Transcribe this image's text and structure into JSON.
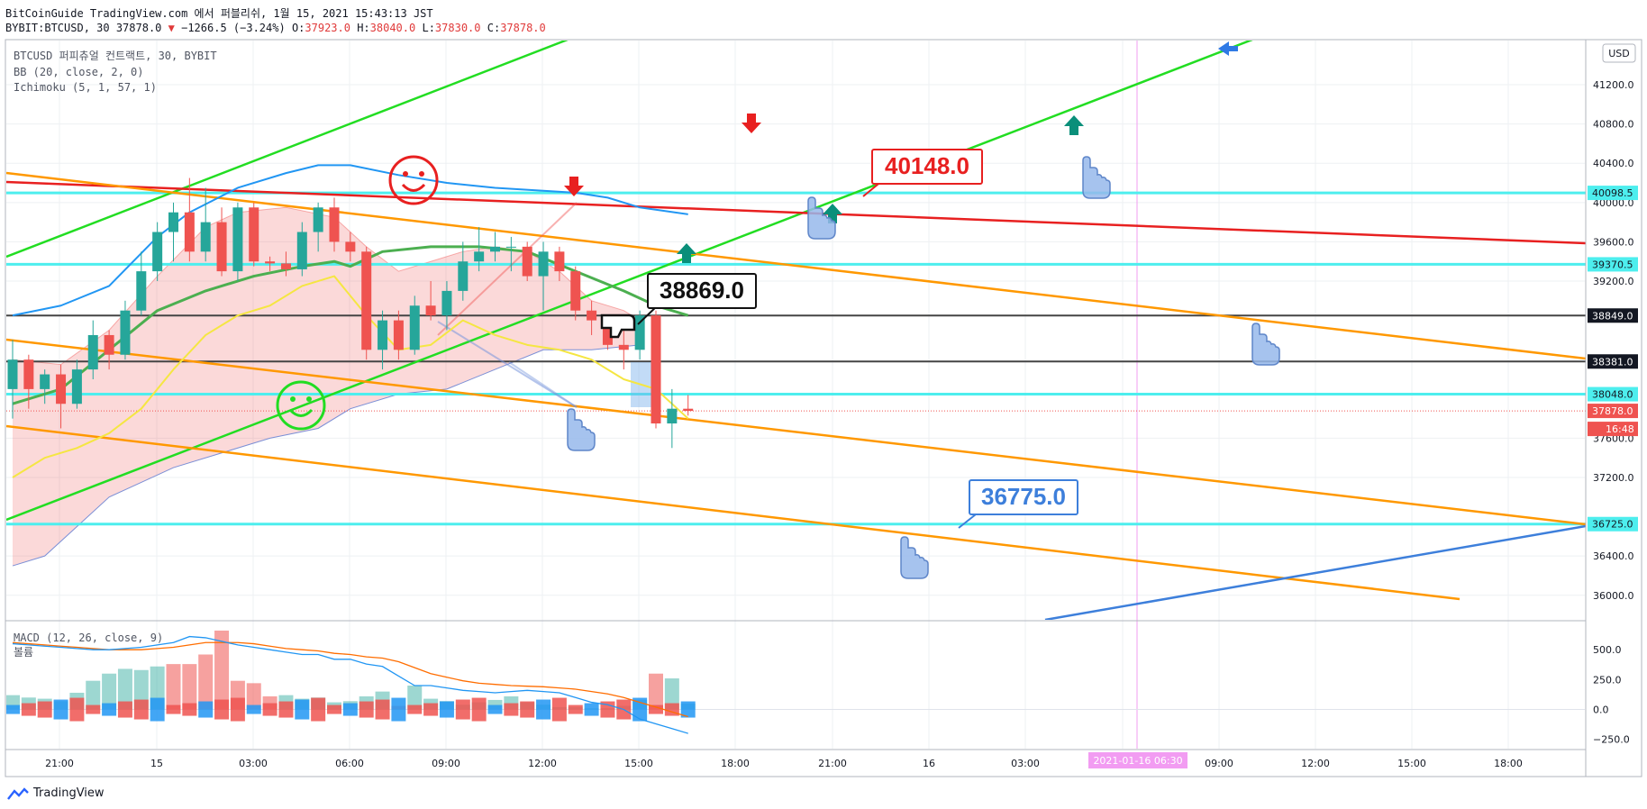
{
  "header": {
    "line1": "BitCoinGuide TradingView.com 에서 퍼블리쉬, 1월 15, 2021 15:43:13 JST",
    "symbol": "BYBIT:BTCUSD, 30",
    "last": "37878.0",
    "change": "−1266.5 (−3.24%)",
    "o_label": "O:",
    "o": "37923.0",
    "h_label": "H:",
    "h": "38040.0",
    "l_label": "L:",
    "l": "37830.0",
    "c_label": "C:",
    "c": "37878.0"
  },
  "legend": {
    "title": "BTCUSD 퍼피츄얼 컨트랙트, 30, BYBIT",
    "bb": "BB (20, close, 2, 0)",
    "ichimoku": "Ichimoku (5, 1, 57, 1)",
    "macd": "MACD (12, 26, close, 9)",
    "volume": "볼륨"
  },
  "currency": "USD",
  "branding": "TradingView",
  "colors": {
    "up": "#26a69a",
    "down": "#ef5350",
    "bb": "#2196f3",
    "tenkan": "#f5e642",
    "kijun": "#4caf50",
    "green_line": "#22dd22",
    "red_line": "#e82020",
    "orange_line": "#ff9800",
    "blue_line": "#3d7fdb",
    "cyan_line": "#4deeee",
    "black_line": "#444444"
  },
  "chart_data": {
    "type": "candlestick",
    "price_axis": {
      "ticks": [
        "41200.0",
        "40800.0",
        "40400.0",
        "40000.0",
        "39600.0",
        "39200.0",
        "37600.0",
        "37200.0",
        "36400.0",
        "36000.0"
      ],
      "range": [
        35750,
        41650
      ]
    },
    "macd_axis": {
      "ticks": [
        "500.0",
        "250.0",
        "0.0",
        "−250.0"
      ],
      "range": [
        -320,
        720
      ]
    },
    "time_axis": {
      "ticks": [
        "21:00",
        "15",
        "03:00",
        "06:00",
        "09:00",
        "12:00",
        "15:00",
        "18:00",
        "21:00",
        "16",
        "03:00",
        "06:00",
        "09:00",
        "12:00",
        "15:00",
        "18:00"
      ],
      "crosshair_label": "2021-01-16 06:30"
    },
    "price_labels": [
      {
        "value": 40098.5,
        "text": "40098.5",
        "kind": "cyan"
      },
      {
        "value": 39370.5,
        "text": "39370.5",
        "kind": "cyan"
      },
      {
        "value": 38849.0,
        "text": "38849.0",
        "kind": "black"
      },
      {
        "value": 38381.0,
        "text": "38381.0",
        "kind": "black"
      },
      {
        "value": 38048.0,
        "text": "38048.0",
        "kind": "cyan"
      },
      {
        "value": 37878.0,
        "text": "37878.0",
        "kind": "last"
      },
      {
        "value": 36725.0,
        "text": "36725.0",
        "kind": "cyan"
      }
    ],
    "countdown": "16:48",
    "callouts": [
      {
        "text": "40148.0",
        "color": "#e82020"
      },
      {
        "text": "38869.0",
        "color": "#111111"
      },
      {
        "text": "36775.0",
        "color": "#3d7fdb"
      }
    ],
    "candles": [
      {
        "o": 38100,
        "h": 38600,
        "l": 37800,
        "c": 38400
      },
      {
        "o": 38400,
        "h": 38450,
        "l": 37900,
        "c": 38100
      },
      {
        "o": 38100,
        "h": 38300,
        "l": 37950,
        "c": 38250
      },
      {
        "o": 38250,
        "h": 38350,
        "l": 37700,
        "c": 37950
      },
      {
        "o": 37950,
        "h": 38400,
        "l": 37900,
        "c": 38300
      },
      {
        "o": 38300,
        "h": 38800,
        "l": 38200,
        "c": 38650
      },
      {
        "o": 38650,
        "h": 38700,
        "l": 38300,
        "c": 38450
      },
      {
        "o": 38450,
        "h": 39000,
        "l": 38400,
        "c": 38900
      },
      {
        "o": 38900,
        "h": 39500,
        "l": 38850,
        "c": 39300
      },
      {
        "o": 39300,
        "h": 39800,
        "l": 39200,
        "c": 39700
      },
      {
        "o": 39700,
        "h": 40000,
        "l": 39400,
        "c": 39900
      },
      {
        "o": 39900,
        "h": 40250,
        "l": 39400,
        "c": 39500
      },
      {
        "o": 39500,
        "h": 40150,
        "l": 39400,
        "c": 39800
      },
      {
        "o": 39800,
        "h": 39950,
        "l": 39250,
        "c": 39300
      },
      {
        "o": 39300,
        "h": 40000,
        "l": 39200,
        "c": 39950
      },
      {
        "o": 39950,
        "h": 40000,
        "l": 39350,
        "c": 39400
      },
      {
        "o": 39400,
        "h": 39450,
        "l": 39300,
        "c": 39380
      },
      {
        "o": 39380,
        "h": 39500,
        "l": 39250,
        "c": 39320
      },
      {
        "o": 39320,
        "h": 39800,
        "l": 39250,
        "c": 39700
      },
      {
        "o": 39700,
        "h": 40000,
        "l": 39500,
        "c": 39950
      },
      {
        "o": 39950,
        "h": 40050,
        "l": 39500,
        "c": 39600
      },
      {
        "o": 39600,
        "h": 39700,
        "l": 39400,
        "c": 39500
      },
      {
        "o": 39500,
        "h": 39550,
        "l": 38400,
        "c": 38500
      },
      {
        "o": 38500,
        "h": 38900,
        "l": 38300,
        "c": 38800
      },
      {
        "o": 38800,
        "h": 38900,
        "l": 38400,
        "c": 38500
      },
      {
        "o": 38500,
        "h": 39050,
        "l": 38450,
        "c": 38950
      },
      {
        "o": 38950,
        "h": 39200,
        "l": 38800,
        "c": 38850
      },
      {
        "o": 38850,
        "h": 39200,
        "l": 38700,
        "c": 39100
      },
      {
        "o": 39100,
        "h": 39600,
        "l": 39000,
        "c": 39400
      },
      {
        "o": 39400,
        "h": 39750,
        "l": 39300,
        "c": 39500
      },
      {
        "o": 39500,
        "h": 39700,
        "l": 39400,
        "c": 39550
      },
      {
        "o": 39550,
        "h": 39650,
        "l": 39300,
        "c": 39550
      },
      {
        "o": 39550,
        "h": 39600,
        "l": 39200,
        "c": 39250
      },
      {
        "o": 39250,
        "h": 39600,
        "l": 38900,
        "c": 39500
      },
      {
        "o": 39500,
        "h": 39550,
        "l": 39200,
        "c": 39300
      },
      {
        "o": 39300,
        "h": 39350,
        "l": 38800,
        "c": 38900
      },
      {
        "o": 38900,
        "h": 39000,
        "l": 38650,
        "c": 38800
      },
      {
        "o": 38800,
        "h": 38850,
        "l": 38500,
        "c": 38550
      },
      {
        "o": 38550,
        "h": 38700,
        "l": 38300,
        "c": 38500
      },
      {
        "o": 38500,
        "h": 38900,
        "l": 38400,
        "c": 38850
      },
      {
        "o": 38850,
        "h": 38900,
        "l": 37700,
        "c": 37750
      },
      {
        "o": 37750,
        "h": 38100,
        "l": 37500,
        "c": 37900
      },
      {
        "o": 37900,
        "h": 38040,
        "l": 37830,
        "c": 37878
      }
    ],
    "bb_upper": [
      [
        0,
        38850
      ],
      [
        3,
        38950
      ],
      [
        6,
        39150
      ],
      [
        9,
        39650
      ],
      [
        11,
        39900
      ],
      [
        14,
        40150
      ],
      [
        17,
        40300
      ],
      [
        19,
        40380
      ],
      [
        21,
        40380
      ],
      [
        24,
        40280
      ],
      [
        27,
        40200
      ],
      [
        30,
        40150
      ],
      [
        33,
        40120
      ],
      [
        35,
        40100
      ],
      [
        37,
        40050
      ],
      [
        39,
        39950
      ],
      [
        42,
        39880
      ]
    ],
    "tenkan": [
      [
        0,
        37200
      ],
      [
        2,
        37400
      ],
      [
        4,
        37500
      ],
      [
        6,
        37650
      ],
      [
        8,
        37900
      ],
      [
        10,
        38300
      ],
      [
        12,
        38650
      ],
      [
        14,
        38850
      ],
      [
        16,
        38950
      ],
      [
        18,
        39150
      ],
      [
        20,
        39250
      ],
      [
        22,
        38850
      ],
      [
        24,
        38500
      ],
      [
        26,
        38550
      ],
      [
        28,
        38800
      ],
      [
        30,
        38650
      ],
      [
        32,
        38550
      ],
      [
        34,
        38500
      ],
      [
        36,
        38400
      ],
      [
        38,
        38200
      ],
      [
        40,
        38100
      ],
      [
        42,
        37800
      ]
    ],
    "kijun": [
      [
        0,
        37950
      ],
      [
        3,
        38100
      ],
      [
        6,
        38500
      ],
      [
        9,
        38900
      ],
      [
        12,
        39100
      ],
      [
        15,
        39250
      ],
      [
        18,
        39350
      ],
      [
        20,
        39400
      ],
      [
        21,
        39350
      ],
      [
        23,
        39500
      ],
      [
        26,
        39550
      ],
      [
        29,
        39550
      ],
      [
        32,
        39500
      ],
      [
        35,
        39300
      ],
      [
        38,
        39100
      ],
      [
        40,
        38950
      ],
      [
        42,
        38850
      ]
    ],
    "cloud_top": [
      [
        0,
        38400
      ],
      [
        3,
        38350
      ],
      [
        6,
        38700
      ],
      [
        9,
        39250
      ],
      [
        12,
        39750
      ],
      [
        14,
        39900
      ],
      [
        17,
        39950
      ],
      [
        20,
        39850
      ],
      [
        22,
        39550
      ],
      [
        24,
        39300
      ],
      [
        26,
        39400
      ],
      [
        28,
        39500
      ],
      [
        30,
        39550
      ],
      [
        32,
        39500
      ],
      [
        34,
        39300
      ],
      [
        36,
        39000
      ],
      [
        38,
        38900
      ],
      [
        39,
        38800
      ]
    ],
    "cloud_bottom": [
      [
        0,
        36300
      ],
      [
        2,
        36400
      ],
      [
        4,
        36700
      ],
      [
        6,
        37000
      ],
      [
        8,
        37150
      ],
      [
        10,
        37300
      ],
      [
        13,
        37450
      ],
      [
        16,
        37600
      ],
      [
        19,
        37700
      ],
      [
        21,
        37900
      ],
      [
        24,
        38050
      ],
      [
        27,
        38100
      ],
      [
        30,
        38300
      ],
      [
        33,
        38500
      ],
      [
        36,
        38500
      ],
      [
        39,
        38550
      ]
    ],
    "macd_hist": [
      120,
      100,
      90,
      70,
      140,
      240,
      300,
      340,
      330,
      360,
      380,
      380,
      460,
      660,
      240,
      220,
      110,
      120,
      90,
      100,
      60,
      70,
      110,
      150,
      30,
      200,
      90,
      70,
      40,
      60,
      80,
      110,
      60,
      40,
      20,
      20,
      10,
      10,
      30,
      80,
      300,
      260,
      50
    ],
    "macd_line": [
      550,
      540,
      530,
      520,
      510,
      500,
      500,
      510,
      520,
      540,
      560,
      610,
      600,
      570,
      540,
      520,
      500,
      480,
      460,
      460,
      420,
      420,
      380,
      360,
      280,
      200,
      200,
      180,
      160,
      150,
      140,
      150,
      160,
      150,
      140,
      100,
      60,
      40,
      0,
      -80,
      -120,
      -160,
      -200
    ],
    "signal_line": [
      560,
      550,
      540,
      530,
      520,
      510,
      500,
      500,
      500,
      510,
      520,
      540,
      560,
      560,
      560,
      550,
      530,
      510,
      500,
      490,
      470,
      460,
      440,
      430,
      400,
      350,
      300,
      270,
      240,
      220,
      210,
      200,
      195,
      190,
      180,
      170,
      150,
      130,
      100,
      60,
      20,
      -20,
      -60
    ]
  }
}
